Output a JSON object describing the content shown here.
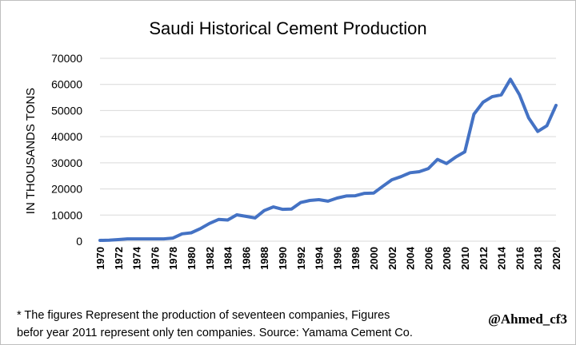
{
  "chart_data": {
    "type": "line",
    "title": "Saudi Historical Cement Production",
    "xlabel": "",
    "ylabel": "IN THOUSANDS TONS",
    "ylim": [
      0,
      70000
    ],
    "yticks": [
      "0",
      "10000",
      "20000",
      "30000",
      "40000",
      "50000",
      "60000",
      "70000"
    ],
    "xticks": [
      "1970",
      "1972",
      "1974",
      "1976",
      "1978",
      "1980",
      "1982",
      "1984",
      "1986",
      "1988",
      "1990",
      "1992",
      "1994",
      "1996",
      "1998",
      "2000",
      "2002",
      "2004",
      "2006",
      "2008",
      "2010",
      "2012",
      "2014",
      "2016",
      "2018",
      "2020"
    ],
    "grid": true,
    "color": "#4472c4",
    "series": [
      {
        "name": "Cement Production",
        "x": [
          1970,
          1971,
          1972,
          1973,
          1974,
          1975,
          1976,
          1977,
          1978,
          1979,
          1980,
          1981,
          1982,
          1983,
          1984,
          1985,
          1986,
          1987,
          1988,
          1989,
          1990,
          1991,
          1992,
          1993,
          1994,
          1995,
          1996,
          1997,
          1998,
          1999,
          2000,
          2001,
          2002,
          2003,
          2004,
          2005,
          2006,
          2007,
          2008,
          2009,
          2010,
          2011,
          2012,
          2013,
          2014,
          2015,
          2016,
          2017,
          2018,
          2019,
          2020
        ],
        "values": [
          300,
          400,
          600,
          900,
          900,
          900,
          900,
          900,
          1200,
          2800,
          3200,
          4800,
          6800,
          8300,
          8100,
          10100,
          9500,
          8900,
          11700,
          13100,
          12200,
          12300,
          14800,
          15600,
          15900,
          15300,
          16500,
          17300,
          17400,
          18300,
          18400,
          21000,
          23500,
          24700,
          26200,
          26600,
          27800,
          31300,
          29700,
          32200,
          34200,
          48600,
          53200,
          55300,
          56000,
          62000,
          56000,
          47200,
          42000,
          44200,
          52000
        ]
      }
    ]
  },
  "footnote": {
    "line1": "* The figures Represent the production of seventeen companies, Figures",
    "line2": "befor year 2011 represent only ten companies. Source: Yamama Cement Co."
  },
  "credit": "@Ahmed_cf3"
}
